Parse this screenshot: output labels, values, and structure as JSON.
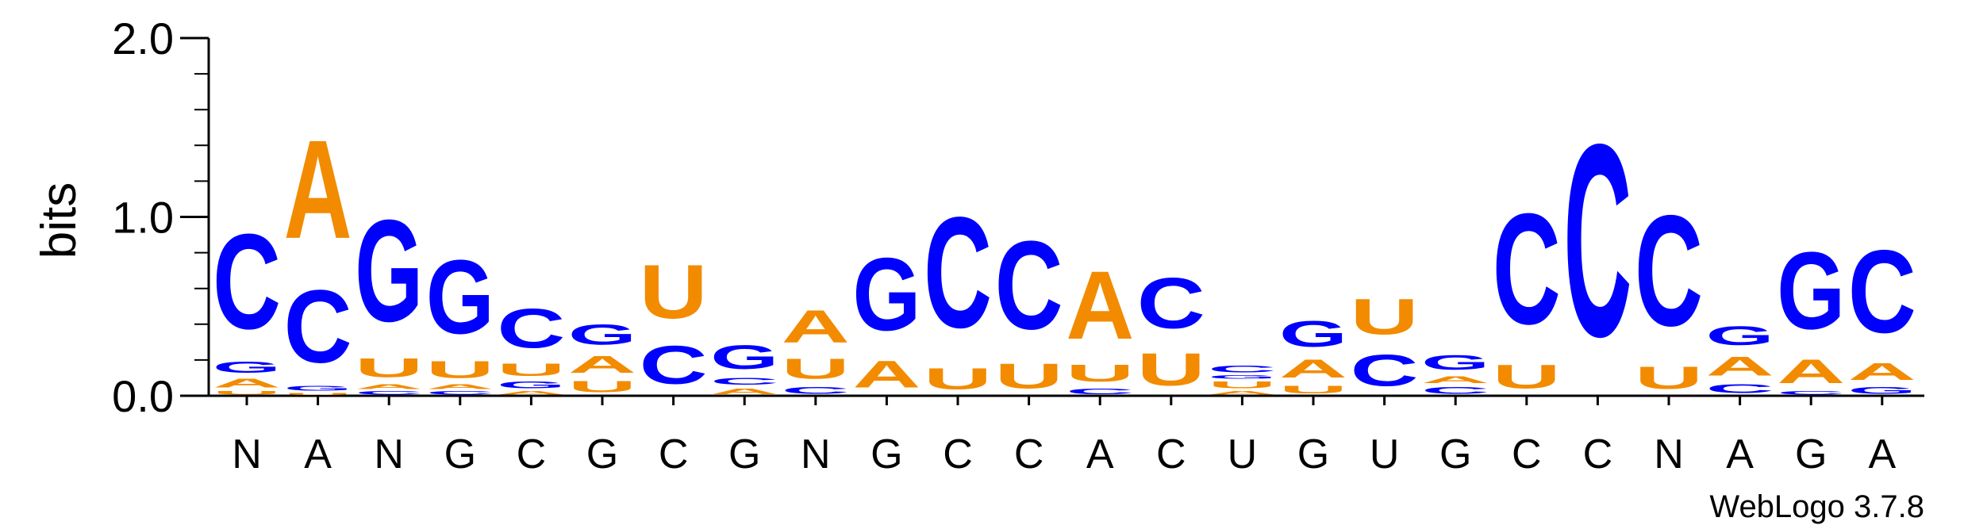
{
  "chart_data": {
    "type": "sequence-logo",
    "ylabel": "bits",
    "ylim": [
      0,
      2.0
    ],
    "yticks": [
      "0.0",
      "1.0",
      "2.0"
    ],
    "credit": "WebLogo 3.7.8",
    "colors": {
      "A": "#f28b00",
      "U": "#f28b00",
      "C": "#0000ff",
      "G": "#0000ff"
    },
    "positions": [
      {
        "consensus": "N",
        "stack": [
          {
            "letter": "U",
            "height": 0.03
          },
          {
            "letter": "A",
            "height": 0.08
          },
          {
            "letter": "G",
            "height": 0.1
          },
          {
            "letter": "C",
            "height": 0.85
          }
        ]
      },
      {
        "consensus": "A",
        "stack": [
          {
            "letter": "U",
            "height": 0.02
          },
          {
            "letter": "G",
            "height": 0.04
          },
          {
            "letter": "C",
            "height": 0.65
          },
          {
            "letter": "A",
            "height": 0.88
          }
        ]
      },
      {
        "consensus": "N",
        "stack": [
          {
            "letter": "C",
            "height": 0.03
          },
          {
            "letter": "A",
            "height": 0.04
          },
          {
            "letter": "U",
            "height": 0.17
          },
          {
            "letter": "G",
            "height": 0.91
          }
        ]
      },
      {
        "consensus": "G",
        "stack": [
          {
            "letter": "C",
            "height": 0.03
          },
          {
            "letter": "A",
            "height": 0.04
          },
          {
            "letter": "U",
            "height": 0.15
          },
          {
            "letter": "G",
            "height": 0.66
          }
        ]
      },
      {
        "consensus": "C",
        "stack": [
          {
            "letter": "A",
            "height": 0.03
          },
          {
            "letter": "G",
            "height": 0.06
          },
          {
            "letter": "U",
            "height": 0.11
          },
          {
            "letter": "C",
            "height": 0.35
          }
        ]
      },
      {
        "consensus": "G",
        "stack": [
          {
            "letter": "U",
            "height": 0.1
          },
          {
            "letter": "A",
            "height": 0.15
          },
          {
            "letter": "G",
            "height": 0.18
          }
        ]
      },
      {
        "consensus": "C",
        "stack": [
          {
            "letter": "C",
            "height": 0.34
          },
          {
            "letter": "U",
            "height": 0.48
          }
        ]
      },
      {
        "consensus": "G",
        "stack": [
          {
            "letter": "A",
            "height": 0.05
          },
          {
            "letter": "C",
            "height": 0.06
          },
          {
            "letter": "G",
            "height": 0.21
          }
        ]
      },
      {
        "consensus": "N",
        "stack": [
          {
            "letter": "C",
            "height": 0.06
          },
          {
            "letter": "U",
            "height": 0.18
          },
          {
            "letter": "A",
            "height": 0.29
          }
        ]
      },
      {
        "consensus": "G",
        "stack": [
          {
            "letter": "A",
            "height": 0.24
          },
          {
            "letter": "G",
            "height": 0.65
          }
        ]
      },
      {
        "consensus": "C",
        "stack": [
          {
            "letter": "U",
            "height": 0.19
          },
          {
            "letter": "C",
            "height": 0.99
          }
        ]
      },
      {
        "consensus": "C",
        "stack": [
          {
            "letter": "U",
            "height": 0.22
          },
          {
            "letter": "C",
            "height": 0.79
          }
        ]
      },
      {
        "consensus": "A",
        "stack": [
          {
            "letter": "C",
            "height": 0.05
          },
          {
            "letter": "U",
            "height": 0.15
          },
          {
            "letter": "A",
            "height": 0.61
          }
        ]
      },
      {
        "consensus": "C",
        "stack": [
          {
            "letter": "U",
            "height": 0.29
          },
          {
            "letter": "C",
            "height": 0.45
          }
        ]
      },
      {
        "consensus": "U",
        "stack": [
          {
            "letter": "A",
            "height": 0.03
          },
          {
            "letter": "U",
            "height": 0.06
          },
          {
            "letter": "G",
            "height": 0.03
          },
          {
            "letter": "C",
            "height": 0.06
          }
        ]
      },
      {
        "consensus": "G",
        "stack": [
          {
            "letter": "U",
            "height": 0.07
          },
          {
            "letter": "A",
            "height": 0.16
          },
          {
            "letter": "G",
            "height": 0.23
          }
        ]
      },
      {
        "consensus": "U",
        "stack": [
          {
            "letter": "C",
            "height": 0.28
          },
          {
            "letter": "U",
            "height": 0.32
          }
        ]
      },
      {
        "consensus": "G",
        "stack": [
          {
            "letter": "C",
            "height": 0.06
          },
          {
            "letter": "A",
            "height": 0.06
          },
          {
            "letter": "G",
            "height": 0.13
          }
        ]
      },
      {
        "consensus": "C",
        "stack": [
          {
            "letter": "U",
            "height": 0.21
          },
          {
            "letter": "C",
            "height": 0.99
          }
        ]
      },
      {
        "consensus": "C",
        "stack": [
          {
            "letter": "C",
            "height": 1.72
          }
        ]
      },
      {
        "consensus": "N",
        "stack": [
          {
            "letter": "U",
            "height": 0.2
          },
          {
            "letter": "C",
            "height": 0.99
          }
        ]
      },
      {
        "consensus": "A",
        "stack": [
          {
            "letter": "C",
            "height": 0.08
          },
          {
            "letter": "A",
            "height": 0.17
          },
          {
            "letter": "G",
            "height": 0.17
          }
        ]
      },
      {
        "consensus": "G",
        "stack": [
          {
            "letter": "C",
            "height": 0.03
          },
          {
            "letter": "A",
            "height": 0.21
          },
          {
            "letter": "G",
            "height": 0.69
          }
        ]
      },
      {
        "consensus": "A",
        "stack": [
          {
            "letter": "G",
            "height": 0.06
          },
          {
            "letter": "A",
            "height": 0.15
          },
          {
            "letter": "C",
            "height": 0.74
          }
        ]
      }
    ]
  }
}
